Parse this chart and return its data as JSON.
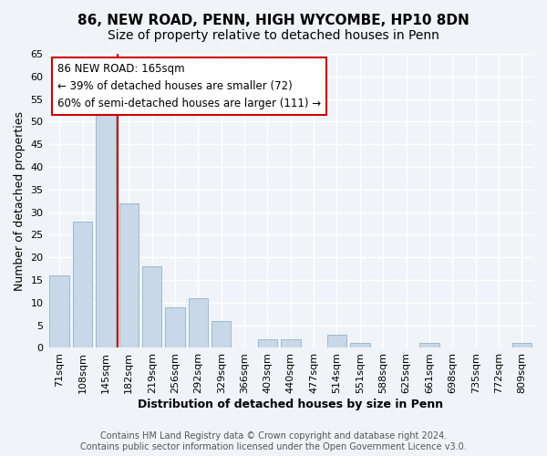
{
  "title": "86, NEW ROAD, PENN, HIGH WYCOMBE, HP10 8DN",
  "subtitle": "Size of property relative to detached houses in Penn",
  "xlabel": "Distribution of detached houses by size in Penn",
  "ylabel": "Number of detached properties",
  "bar_labels": [
    "71sqm",
    "108sqm",
    "145sqm",
    "182sqm",
    "219sqm",
    "256sqm",
    "292sqm",
    "329sqm",
    "366sqm",
    "403sqm",
    "440sqm",
    "477sqm",
    "514sqm",
    "551sqm",
    "588sqm",
    "625sqm",
    "661sqm",
    "698sqm",
    "735sqm",
    "772sqm",
    "809sqm"
  ],
  "bar_values": [
    16,
    28,
    53,
    32,
    18,
    9,
    11,
    6,
    0,
    2,
    2,
    0,
    3,
    1,
    0,
    0,
    1,
    0,
    0,
    0,
    1
  ],
  "bar_color": "#c8d8e8",
  "bar_edge_color": "#a0b8cc",
  "vline_x": 2,
  "vline_color": "#cc0000",
  "ylim": [
    0,
    65
  ],
  "yticks": [
    0,
    5,
    10,
    15,
    20,
    25,
    30,
    35,
    40,
    45,
    50,
    55,
    60,
    65
  ],
  "annotation_text": "86 NEW ROAD: 165sqm\n← 39% of detached houses are smaller (72)\n60% of semi-detached houses are larger (111) →",
  "annotation_box_color": "#ffffff",
  "annotation_box_edge": "#cc0000",
  "footer_text": "Contains HM Land Registry data © Crown copyright and database right 2024.\nContains public sector information licensed under the Open Government Licence v3.0.",
  "bg_color": "#f0f4f8",
  "plot_bg_color": "#f0f4f8",
  "grid_color": "#ffffff",
  "title_fontsize": 11,
  "subtitle_fontsize": 10,
  "axis_label_fontsize": 9,
  "tick_fontsize": 8,
  "footer_fontsize": 7
}
